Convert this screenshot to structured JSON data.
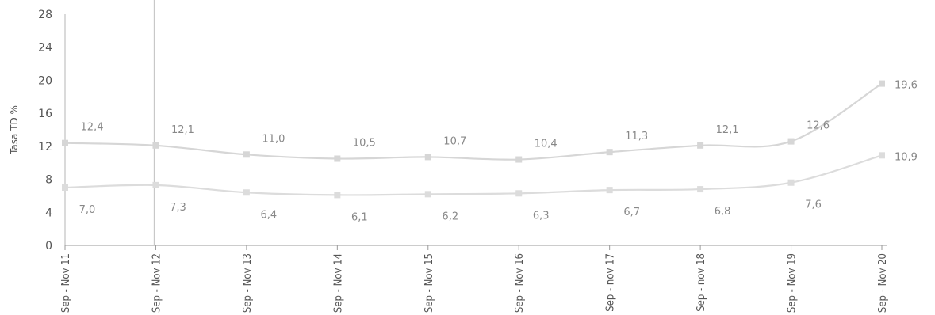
{
  "chart_data": {
    "type": "line",
    "title": "",
    "xlabel": "",
    "ylabel": "Tasa TD %",
    "ylim": [
      0,
      28
    ],
    "yticks": [
      "0",
      "4",
      "8",
      "12",
      "16",
      "20",
      "24",
      "28"
    ],
    "categories": [
      "Sep - Nov 11",
      "Sep - Nov 12",
      "Sep - Nov 13",
      "Sep - Nov 14",
      "Sep - Nov 15",
      "Sep - Nov 16",
      "Sep - nov 17",
      "Sep - nov 18",
      "Sep - Nov 19",
      "Sep - Nov 20"
    ],
    "series": [
      {
        "values": [
          12.4,
          12.1,
          11.0,
          10.5,
          10.7,
          10.4,
          11.3,
          12.1,
          12.6,
          19.6
        ],
        "labels": [
          "12,4",
          "12,1",
          "11,0",
          "10,5",
          "10,7",
          "10,4",
          "11,3",
          "12,1",
          "12,6",
          "19,6"
        ],
        "color": "#d6d6d6"
      },
      {
        "values": [
          7.0,
          7.3,
          6.4,
          6.1,
          6.2,
          6.3,
          6.7,
          6.8,
          7.6,
          10.9
        ],
        "labels": [
          "7,0",
          "7,3",
          "6,4",
          "6,1",
          "6,2",
          "6,3",
          "6,7",
          "6,8",
          "7,6",
          "10,9"
        ],
        "color": "#dcdcdc"
      }
    ],
    "grid": false,
    "legend": "none"
  }
}
